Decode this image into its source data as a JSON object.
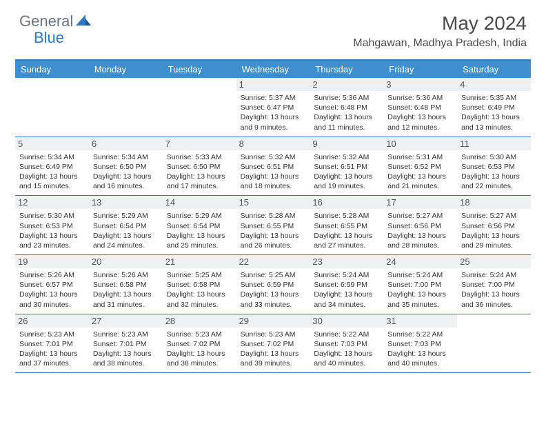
{
  "logo": {
    "text1": "General",
    "text2": "Blue"
  },
  "title": "May 2024",
  "location": "Mahgawan, Madhya Pradesh, India",
  "colors": {
    "header_bg": "#3e8fce",
    "border": "#2f7abf",
    "daynum_bg": "#eef0f1",
    "text": "#333333",
    "title_text": "#4a4a4a"
  },
  "dayHeaders": [
    "Sunday",
    "Monday",
    "Tuesday",
    "Wednesday",
    "Thursday",
    "Friday",
    "Saturday"
  ],
  "weeks": [
    [
      null,
      null,
      null,
      {
        "n": "1",
        "sr": "5:37 AM",
        "ss": "6:47 PM",
        "dl": "13 hours and 9 minutes."
      },
      {
        "n": "2",
        "sr": "5:36 AM",
        "ss": "6:48 PM",
        "dl": "13 hours and 11 minutes."
      },
      {
        "n": "3",
        "sr": "5:36 AM",
        "ss": "6:48 PM",
        "dl": "13 hours and 12 minutes."
      },
      {
        "n": "4",
        "sr": "5:35 AM",
        "ss": "6:49 PM",
        "dl": "13 hours and 13 minutes."
      }
    ],
    [
      {
        "n": "5",
        "sr": "5:34 AM",
        "ss": "6:49 PM",
        "dl": "13 hours and 15 minutes."
      },
      {
        "n": "6",
        "sr": "5:34 AM",
        "ss": "6:50 PM",
        "dl": "13 hours and 16 minutes."
      },
      {
        "n": "7",
        "sr": "5:33 AM",
        "ss": "6:50 PM",
        "dl": "13 hours and 17 minutes."
      },
      {
        "n": "8",
        "sr": "5:32 AM",
        "ss": "6:51 PM",
        "dl": "13 hours and 18 minutes."
      },
      {
        "n": "9",
        "sr": "5:32 AM",
        "ss": "6:51 PM",
        "dl": "13 hours and 19 minutes."
      },
      {
        "n": "10",
        "sr": "5:31 AM",
        "ss": "6:52 PM",
        "dl": "13 hours and 21 minutes."
      },
      {
        "n": "11",
        "sr": "5:30 AM",
        "ss": "6:53 PM",
        "dl": "13 hours and 22 minutes."
      }
    ],
    [
      {
        "n": "12",
        "sr": "5:30 AM",
        "ss": "6:53 PM",
        "dl": "13 hours and 23 minutes."
      },
      {
        "n": "13",
        "sr": "5:29 AM",
        "ss": "6:54 PM",
        "dl": "13 hours and 24 minutes."
      },
      {
        "n": "14",
        "sr": "5:29 AM",
        "ss": "6:54 PM",
        "dl": "13 hours and 25 minutes."
      },
      {
        "n": "15",
        "sr": "5:28 AM",
        "ss": "6:55 PM",
        "dl": "13 hours and 26 minutes."
      },
      {
        "n": "16",
        "sr": "5:28 AM",
        "ss": "6:55 PM",
        "dl": "13 hours and 27 minutes."
      },
      {
        "n": "17",
        "sr": "5:27 AM",
        "ss": "6:56 PM",
        "dl": "13 hours and 28 minutes."
      },
      {
        "n": "18",
        "sr": "5:27 AM",
        "ss": "6:56 PM",
        "dl": "13 hours and 29 minutes."
      }
    ],
    [
      {
        "n": "19",
        "sr": "5:26 AM",
        "ss": "6:57 PM",
        "dl": "13 hours and 30 minutes."
      },
      {
        "n": "20",
        "sr": "5:26 AM",
        "ss": "6:58 PM",
        "dl": "13 hours and 31 minutes."
      },
      {
        "n": "21",
        "sr": "5:25 AM",
        "ss": "6:58 PM",
        "dl": "13 hours and 32 minutes."
      },
      {
        "n": "22",
        "sr": "5:25 AM",
        "ss": "6:59 PM",
        "dl": "13 hours and 33 minutes."
      },
      {
        "n": "23",
        "sr": "5:24 AM",
        "ss": "6:59 PM",
        "dl": "13 hours and 34 minutes."
      },
      {
        "n": "24",
        "sr": "5:24 AM",
        "ss": "7:00 PM",
        "dl": "13 hours and 35 minutes."
      },
      {
        "n": "25",
        "sr": "5:24 AM",
        "ss": "7:00 PM",
        "dl": "13 hours and 36 minutes."
      }
    ],
    [
      {
        "n": "26",
        "sr": "5:23 AM",
        "ss": "7:01 PM",
        "dl": "13 hours and 37 minutes."
      },
      {
        "n": "27",
        "sr": "5:23 AM",
        "ss": "7:01 PM",
        "dl": "13 hours and 38 minutes."
      },
      {
        "n": "28",
        "sr": "5:23 AM",
        "ss": "7:02 PM",
        "dl": "13 hours and 38 minutes."
      },
      {
        "n": "29",
        "sr": "5:23 AM",
        "ss": "7:02 PM",
        "dl": "13 hours and 39 minutes."
      },
      {
        "n": "30",
        "sr": "5:22 AM",
        "ss": "7:03 PM",
        "dl": "13 hours and 40 minutes."
      },
      {
        "n": "31",
        "sr": "5:22 AM",
        "ss": "7:03 PM",
        "dl": "13 hours and 40 minutes."
      },
      null
    ]
  ],
  "labels": {
    "sunrise": "Sunrise: ",
    "sunset": "Sunset: ",
    "daylight": "Daylight: "
  }
}
